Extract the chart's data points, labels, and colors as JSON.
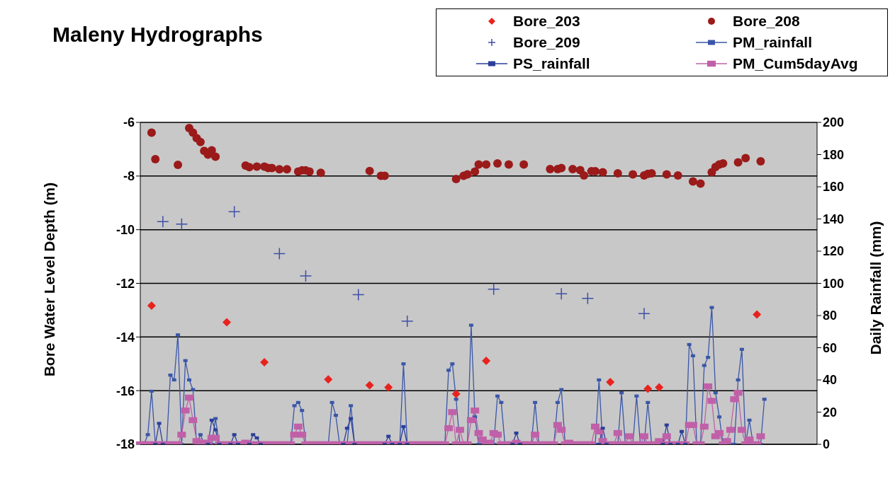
{
  "chart_data": {
    "type": "scatter",
    "title": "Maleny Hydrographs",
    "ylabel": "Bore Water Level Depth (m)",
    "y2label": "Daily Rainfall (mm)",
    "categories": [
      null,
      null,
      null,
      null,
      null,
      null,
      null,
      null,
      null,
      null,
      null,
      null,
      null,
      null,
      null,
      null,
      null,
      null,
      null,
      null,
      null,
      null,
      null,
      null,
      null,
      null,
      null,
      null,
      null,
      null,
      null,
      null,
      null,
      null,
      null,
      null,
      null,
      null,
      null,
      null,
      null,
      null,
      null,
      null,
      null,
      null,
      null,
      null,
      null,
      null,
      null,
      null,
      null,
      null,
      null,
      null,
      null,
      null,
      null,
      null,
      null,
      null,
      null,
      null,
      null,
      null,
      null,
      null,
      null,
      null,
      null,
      null,
      null,
      null,
      null,
      null,
      null,
      null,
      null,
      null,
      null,
      null,
      null,
      null,
      null,
      null,
      null,
      null,
      null,
      null,
      null,
      null,
      null,
      null,
      null,
      null,
      null,
      null,
      null,
      null,
      null,
      null,
      null,
      null,
      null,
      null,
      null,
      null,
      null,
      null,
      null,
      null,
      null,
      null,
      null,
      null,
      null,
      null,
      null,
      null,
      null,
      null,
      null,
      null,
      null,
      null,
      null,
      null,
      null,
      null,
      null,
      null,
      null,
      null,
      null,
      null,
      null,
      null,
      null,
      null,
      null,
      null,
      null,
      null,
      null,
      null,
      null,
      null,
      null,
      null,
      null,
      null,
      null,
      null,
      null,
      null,
      null,
      null,
      null,
      null,
      null,
      null,
      null,
      null,
      null,
      null,
      null,
      null,
      null,
      null,
      null,
      null,
      null,
      null,
      null,
      null,
      null,
      null,
      null,
      null,
      null
    ],
    "ylim": [
      -18,
      -6
    ],
    "yticks": [
      -18,
      -16,
      -14,
      -12,
      -10,
      -8,
      -6
    ],
    "y2lim": [
      0,
      200
    ],
    "y2ticks": [
      0,
      20,
      40,
      60,
      80,
      100,
      120,
      140,
      160,
      180,
      200
    ],
    "tick_labels": "y",
    "grid": "y",
    "legend": "top right",
    "series": [
      {
        "name": "Bore_203",
        "marker": "diamond",
        "color": "#e8231e",
        "values": [
          null,
          null,
          null,
          -12.83,
          null,
          null,
          null,
          null,
          null,
          null,
          null,
          null,
          null,
          null,
          null,
          null,
          null,
          null,
          null,
          null,
          null,
          null,
          null,
          -13.45,
          null,
          null,
          null,
          null,
          null,
          null,
          null,
          null,
          null,
          -14.94,
          null,
          null,
          null,
          null,
          null,
          null,
          null,
          null,
          null,
          null,
          null,
          null,
          null,
          null,
          null,
          null,
          -15.58,
          null,
          null,
          null,
          null,
          null,
          null,
          null,
          null,
          null,
          null,
          -15.8,
          null,
          null,
          null,
          null,
          -15.88,
          null,
          null,
          null,
          null,
          null,
          null,
          null,
          null,
          null,
          null,
          null,
          null,
          null,
          null,
          null,
          null,
          null,
          -16.12,
          null,
          null,
          null,
          null,
          null,
          null,
          null,
          -14.89,
          null,
          null,
          null,
          null,
          null,
          null,
          null,
          null,
          null,
          null,
          null,
          null,
          null,
          null,
          null,
          null,
          null,
          null,
          null,
          null,
          null,
          null,
          null,
          null,
          null,
          null,
          null,
          null,
          null,
          null,
          null,
          null,
          -15.68,
          null,
          null,
          null,
          null,
          null,
          null,
          null,
          null,
          null,
          -15.93,
          null,
          null,
          -15.88,
          null,
          null,
          null,
          null,
          null,
          null,
          null,
          null,
          null,
          null,
          null,
          null,
          null,
          null,
          null,
          null,
          null,
          null,
          null,
          null,
          null,
          null,
          null,
          null,
          null,
          -13.16,
          null,
          null,
          null,
          null,
          null,
          null,
          null,
          null,
          null,
          null,
          null,
          null,
          null,
          null,
          null,
          null
        ]
      },
      {
        "name": "Bore_208",
        "marker": "circle",
        "color": "#9b1a1a",
        "values": [
          null,
          null,
          null,
          -6.38,
          -7.37,
          null,
          null,
          null,
          null,
          null,
          -7.58,
          null,
          null,
          -6.21,
          -6.38,
          -6.59,
          -6.73,
          -7.06,
          -7.2,
          -7.04,
          -7.28,
          null,
          null,
          null,
          null,
          null,
          null,
          null,
          -7.61,
          -7.67,
          null,
          -7.65,
          null,
          -7.65,
          -7.7,
          -7.7,
          null,
          -7.75,
          null,
          -7.75,
          null,
          null,
          -7.83,
          -7.79,
          -7.79,
          -7.83,
          null,
          null,
          -7.88,
          null,
          null,
          null,
          null,
          null,
          null,
          null,
          null,
          null,
          null,
          null,
          null,
          -7.81,
          null,
          null,
          -7.99,
          -7.99,
          null,
          null,
          null,
          null,
          null,
          null,
          null,
          null,
          null,
          null,
          null,
          null,
          null,
          null,
          null,
          null,
          null,
          null,
          -8.11,
          null,
          -7.99,
          -7.94,
          null,
          -7.83,
          -7.57,
          null,
          -7.57,
          null,
          null,
          -7.53,
          null,
          null,
          -7.57,
          null,
          null,
          null,
          -7.57,
          null,
          null,
          null,
          null,
          null,
          null,
          -7.74,
          null,
          -7.74,
          -7.7,
          null,
          null,
          -7.74,
          null,
          -7.78,
          -7.98,
          null,
          -7.82,
          -7.82,
          null,
          -7.86,
          null,
          null,
          null,
          -7.9,
          null,
          null,
          null,
          -7.94,
          null,
          null,
          -7.98,
          -7.92,
          -7.9,
          null,
          null,
          null,
          -7.94,
          null,
          null,
          -7.98,
          null,
          null,
          null,
          -8.2,
          null,
          -8.28,
          null,
          null,
          -7.86,
          -7.66,
          -7.57,
          -7.53,
          null,
          null,
          null,
          -7.49,
          null,
          -7.33,
          null,
          null,
          null,
          -7.45,
          null,
          null,
          null,
          null,
          null,
          null,
          null,
          null,
          null,
          null,
          null,
          null,
          null,
          null,
          null
        ]
      },
      {
        "name": "Bore_209",
        "marker": "cross",
        "color": "#3f4fa8",
        "values": [
          null,
          null,
          null,
          null,
          null,
          null,
          -9.7,
          null,
          null,
          null,
          null,
          -9.79,
          null,
          null,
          null,
          null,
          null,
          null,
          null,
          null,
          null,
          null,
          null,
          null,
          null,
          -9.33,
          null,
          null,
          null,
          null,
          null,
          null,
          null,
          null,
          null,
          null,
          null,
          -10.89,
          null,
          null,
          null,
          null,
          null,
          null,
          -11.72,
          null,
          null,
          null,
          null,
          null,
          null,
          null,
          null,
          null,
          null,
          null,
          null,
          null,
          -12.42,
          null,
          null,
          null,
          null,
          null,
          null,
          null,
          null,
          null,
          null,
          null,
          null,
          -13.41,
          null,
          null,
          null,
          null,
          null,
          null,
          null,
          null,
          null,
          null,
          null,
          null,
          null,
          null,
          null,
          null,
          null,
          null,
          null,
          null,
          null,
          null,
          -12.22,
          null,
          null,
          null,
          null,
          null,
          null,
          null,
          null,
          null,
          null,
          null,
          null,
          null,
          null,
          null,
          null,
          null,
          -12.39,
          null,
          null,
          null,
          null,
          null,
          null,
          -12.56,
          null,
          null,
          null,
          null,
          null,
          null,
          null,
          null,
          null,
          null,
          null,
          null,
          null,
          null,
          -13.13,
          null,
          null,
          null,
          null,
          null,
          null,
          null,
          null,
          null,
          null,
          null,
          null,
          null,
          null,
          null,
          null,
          null,
          null,
          null,
          null,
          null,
          null,
          null,
          null,
          null,
          null,
          null,
          null,
          null,
          null,
          null,
          null,
          null,
          null,
          null,
          null,
          null,
          null,
          null,
          null,
          null,
          null,
          null,
          null,
          null,
          null
        ]
      },
      {
        "name": "PM_rainfall",
        "type": "line",
        "axis": "y2",
        "marker": "square",
        "line_style": "solid",
        "color": "#3a56a8",
        "values": [
          0,
          0,
          6,
          33,
          0,
          0,
          0,
          0,
          43,
          40,
          68,
          0,
          52,
          40,
          34,
          0,
          6,
          0,
          0,
          0,
          16,
          0,
          0,
          0,
          0,
          0,
          0,
          0,
          0,
          0,
          0,
          0,
          0,
          0,
          0,
          0,
          0,
          0,
          0,
          0,
          0,
          24,
          26,
          21,
          0,
          0,
          0,
          0,
          0,
          0,
          0,
          26,
          18,
          0,
          0,
          0,
          24,
          0,
          0,
          0,
          0,
          0,
          0,
          0,
          0,
          0,
          0,
          0,
          0,
          0,
          50,
          0,
          0,
          0,
          0,
          0,
          0,
          0,
          0,
          0,
          0,
          0,
          46,
          50,
          28,
          0,
          0,
          0,
          74,
          17,
          0,
          0,
          0,
          0,
          0,
          30,
          26,
          0,
          0,
          0,
          0,
          0,
          0,
          0,
          0,
          26,
          0,
          0,
          0,
          0,
          0,
          26,
          34,
          0,
          0,
          0,
          0,
          0,
          0,
          0,
          0,
          0,
          40,
          0,
          0,
          0,
          0,
          0,
          32,
          0,
          0,
          0,
          30,
          0,
          0,
          26,
          0,
          0,
          0,
          0,
          0,
          0,
          0,
          0,
          0,
          0,
          62,
          55,
          0,
          0,
          49,
          54,
          85,
          32,
          17,
          0,
          0,
          0,
          0,
          40,
          59,
          0,
          15,
          0,
          0,
          0,
          28,
          null,
          null,
          null,
          null,
          null,
          null,
          null,
          null,
          null,
          null,
          null,
          null,
          null,
          null
        ]
      },
      {
        "name": "PS_rainfall",
        "type": "line",
        "axis": "y2",
        "marker": "square",
        "line_style": "solid",
        "color": "#2b3f9a",
        "values": [
          null,
          null,
          null,
          null,
          0,
          13,
          0,
          null,
          null,
          null,
          null,
          null,
          null,
          null,
          null,
          null,
          null,
          null,
          0,
          15,
          9,
          0,
          null,
          null,
          0,
          6,
          0,
          null,
          null,
          0,
          6,
          4,
          0,
          null,
          null,
          null,
          null,
          null,
          null,
          null,
          null,
          null,
          null,
          null,
          null,
          null,
          null,
          null,
          null,
          null,
          null,
          null,
          null,
          null,
          0,
          10,
          16,
          0,
          null,
          null,
          null,
          null,
          null,
          null,
          null,
          0,
          5,
          0,
          null,
          0,
          11,
          0,
          null,
          null,
          null,
          null,
          null,
          null,
          null,
          null,
          null,
          null,
          null,
          null,
          null,
          null,
          null,
          null,
          null,
          null,
          null,
          null,
          null,
          null,
          null,
          null,
          null,
          null,
          null,
          0,
          7,
          0,
          null,
          null,
          null,
          null,
          null,
          null,
          null,
          null,
          null,
          null,
          null,
          null,
          null,
          null,
          null,
          null,
          null,
          null,
          null,
          null,
          0,
          10,
          0,
          null,
          null,
          null,
          null,
          null,
          null,
          null,
          null,
          null,
          null,
          null,
          null,
          null,
          null,
          0,
          12,
          0,
          null,
          0,
          8,
          0,
          null,
          null,
          null,
          null,
          null,
          null,
          null,
          null,
          null,
          null,
          null,
          null,
          null,
          null,
          null,
          null,
          null,
          null,
          null,
          null,
          null,
          null,
          null,
          null,
          null,
          null,
          null,
          null,
          null,
          null,
          null,
          null,
          null,
          null,
          null
        ]
      },
      {
        "name": "PM_Cum5dayAvg",
        "type": "line",
        "axis": "y2",
        "marker": "square",
        "line_style": "solid",
        "color": "#c060a8",
        "values": [
          0,
          0,
          0,
          0,
          0,
          0,
          0,
          0,
          0,
          0,
          0,
          6,
          21,
          29,
          15,
          2,
          0,
          1,
          0,
          4,
          4,
          0,
          0,
          0,
          0,
          0,
          0,
          0,
          1,
          0,
          0,
          0,
          0,
          0,
          0,
          0,
          0,
          0,
          0,
          0,
          0,
          6,
          11,
          6,
          0,
          0,
          0,
          0,
          0,
          0,
          0,
          0,
          0,
          0,
          0,
          0,
          0,
          0,
          0,
          0,
          0,
          0,
          0,
          0,
          0,
          0,
          0,
          0,
          0,
          0,
          0,
          0,
          0,
          0,
          0,
          0,
          0,
          0,
          0,
          0,
          0,
          0,
          10,
          20,
          0,
          9,
          0,
          0,
          15,
          21,
          7,
          3,
          0,
          1,
          7,
          6,
          0,
          0,
          0,
          0,
          1,
          0,
          0,
          0,
          0,
          6,
          0,
          0,
          0,
          0,
          0,
          12,
          9,
          0,
          1,
          0,
          0,
          0,
          0,
          0,
          0,
          11,
          8,
          2,
          0,
          0,
          0,
          7,
          0,
          0,
          5,
          0,
          0,
          0,
          5,
          0,
          0,
          0,
          2,
          0,
          5,
          0,
          0,
          0,
          0,
          0,
          12,
          12,
          0,
          0,
          11,
          36,
          27,
          5,
          7,
          0,
          2,
          9,
          28,
          32,
          9,
          0,
          3,
          0,
          0,
          5,
          null,
          null,
          null,
          null,
          null,
          null,
          null,
          null,
          null,
          null,
          null,
          null,
          null,
          null,
          null
        ]
      }
    ]
  }
}
